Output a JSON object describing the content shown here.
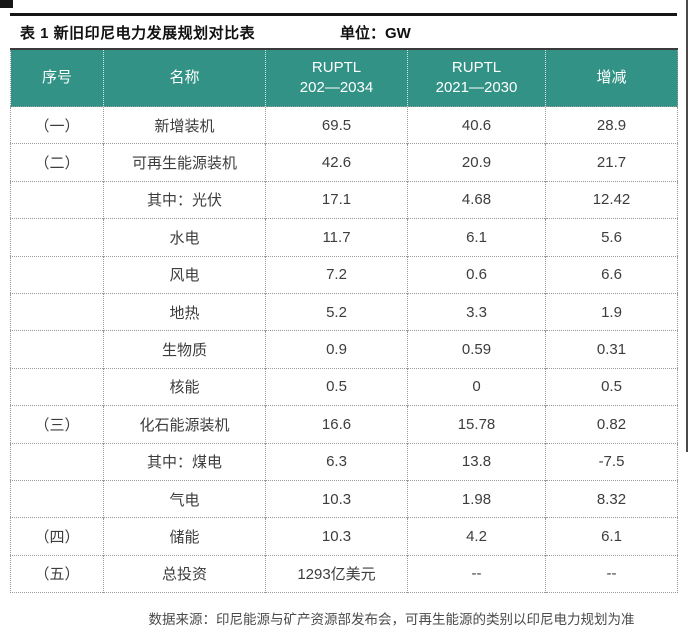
{
  "page": {
    "title": "表 1 新旧印尼电力发展规划对比表",
    "unit_label": "单位：GW",
    "footnote": "数据来源：印尼能源与矿产资源部发布会，可再生能源的类别以印尼电力规划为准"
  },
  "colors": {
    "header_bg": "#319285",
    "header_text": "#ffffff",
    "title_rule": "#161616",
    "cell_text": "#3d3d3d",
    "dotted_border": "#9a9a9a"
  },
  "table": {
    "headers": {
      "serial": "序号",
      "name": "名称",
      "ruptl_new_line1": "RUPTL",
      "ruptl_new_line2": "202—2034",
      "ruptl_old_line1": "RUPTL",
      "ruptl_old_line2": "2021—2030",
      "change": "增减"
    },
    "rows": [
      {
        "no": "（一）",
        "name": "新增装机",
        "ruptl_new": "69.5",
        "ruptl_old": "40.6",
        "delta": "28.9"
      },
      {
        "no": "（二）",
        "name": "可再生能源装机",
        "ruptl_new": "42.6",
        "ruptl_old": "20.9",
        "delta": "21.7"
      },
      {
        "no": "",
        "name": "其中：光伏",
        "ruptl_new": "17.1",
        "ruptl_old": "4.68",
        "delta": "12.42"
      },
      {
        "no": "",
        "name": "水电",
        "ruptl_new": "11.7",
        "ruptl_old": "6.1",
        "delta": "5.6"
      },
      {
        "no": "",
        "name": "风电",
        "ruptl_new": "7.2",
        "ruptl_old": "0.6",
        "delta": "6.6"
      },
      {
        "no": "",
        "name": "地热",
        "ruptl_new": "5.2",
        "ruptl_old": "3.3",
        "delta": "1.9"
      },
      {
        "no": "",
        "name": "生物质",
        "ruptl_new": "0.9",
        "ruptl_old": "0.59",
        "delta": "0.31"
      },
      {
        "no": "",
        "name": "核能",
        "ruptl_new": "0.5",
        "ruptl_old": "0",
        "delta": "0.5"
      },
      {
        "no": "（三）",
        "name": "化石能源装机",
        "ruptl_new": "16.6",
        "ruptl_old": "15.78",
        "delta": "0.82"
      },
      {
        "no": "",
        "name": "其中：煤电",
        "ruptl_new": "6.3",
        "ruptl_old": "13.8",
        "delta": "-7.5"
      },
      {
        "no": "",
        "name": "气电",
        "ruptl_new": "10.3",
        "ruptl_old": "1.98",
        "delta": "8.32"
      },
      {
        "no": "（四）",
        "name": "储能",
        "ruptl_new": "10.3",
        "ruptl_old": "4.2",
        "delta": "6.1"
      },
      {
        "no": "（五）",
        "name": "总投资",
        "ruptl_new": "1293亿美元",
        "ruptl_old": "--",
        "delta": "--"
      }
    ]
  }
}
